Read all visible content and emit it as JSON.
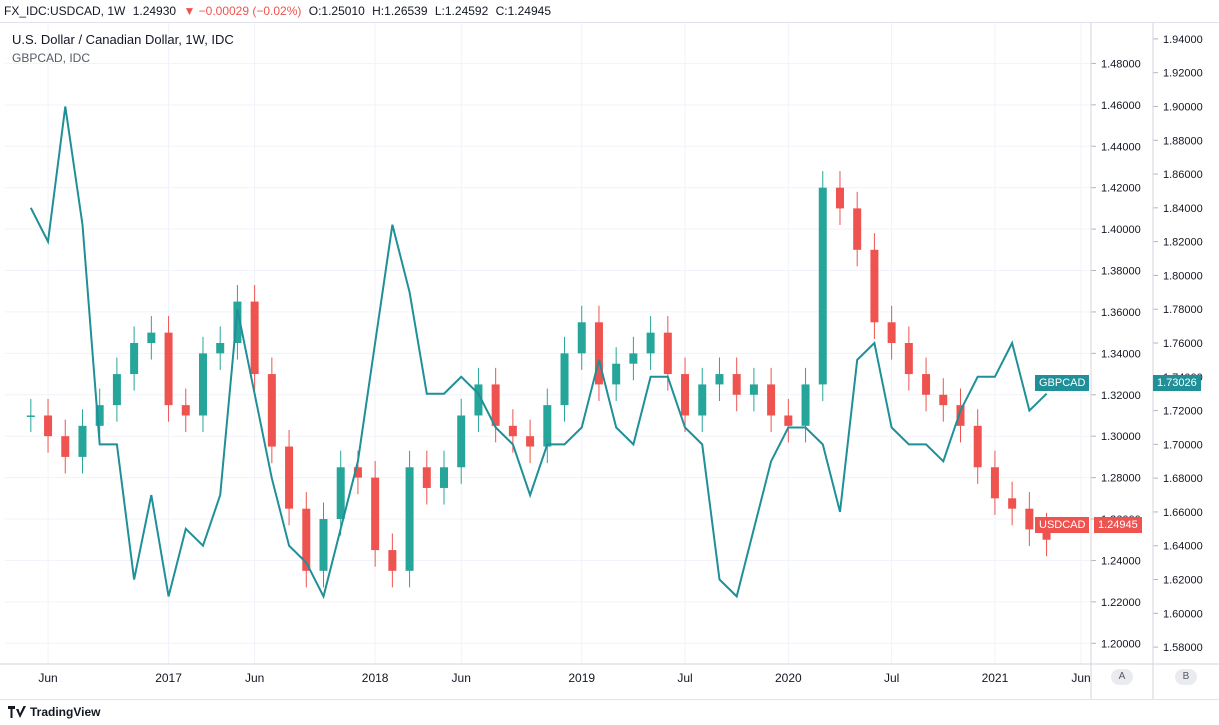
{
  "header": {
    "symbol": "FX_IDC:USDCAD, 1W",
    "last": "1.24930",
    "change": "▼ −0.00029 (−0.02%)",
    "open": "O:1.25010",
    "high": "H:1.26539",
    "low": "L:1.24592",
    "close": "C:1.24945"
  },
  "legend": {
    "main": "U.S. Dollar / Canadian Dollar, 1W, IDC",
    "compare": "GBPCAD, IDC"
  },
  "colors": {
    "up": "#26a69a",
    "down": "#ef5350",
    "gbpcad": "#1f8f98"
  },
  "chart_data": {
    "type": "line",
    "x": [
      "2016-05",
      "2016-06",
      "2016-07",
      "2016-08",
      "2016-09",
      "2016-10",
      "2016-11",
      "2016-12",
      "2017-01",
      "2017-02",
      "2017-03",
      "2017-04",
      "2017-05",
      "2017-06",
      "2017-07",
      "2017-08",
      "2017-09",
      "2017-10",
      "2017-11",
      "2017-12",
      "2018-01",
      "2018-02",
      "2018-03",
      "2018-04",
      "2018-05",
      "2018-06",
      "2018-07",
      "2018-08",
      "2018-09",
      "2018-10",
      "2018-11",
      "2018-12",
      "2019-01",
      "2019-02",
      "2019-03",
      "2019-04",
      "2019-05",
      "2019-06",
      "2019-07",
      "2019-08",
      "2019-09",
      "2019-10",
      "2019-11",
      "2019-12",
      "2020-01",
      "2020-02",
      "2020-03",
      "2020-04",
      "2020-05",
      "2020-06",
      "2020-07",
      "2020-08",
      "2020-09",
      "2020-10",
      "2020-11",
      "2020-12",
      "2021-01",
      "2021-02",
      "2021-03",
      "2021-04"
    ],
    "series": [
      {
        "name": "USDCAD",
        "type": "candlestick",
        "axis": "left",
        "values": [
          1.31,
          1.3,
          1.29,
          1.305,
          1.315,
          1.33,
          1.345,
          1.35,
          1.315,
          1.31,
          1.34,
          1.345,
          1.365,
          1.33,
          1.295,
          1.265,
          1.235,
          1.26,
          1.285,
          1.28,
          1.245,
          1.235,
          1.285,
          1.275,
          1.285,
          1.31,
          1.325,
          1.305,
          1.3,
          1.295,
          1.315,
          1.34,
          1.355,
          1.325,
          1.335,
          1.34,
          1.35,
          1.33,
          1.31,
          1.325,
          1.33,
          1.32,
          1.325,
          1.31,
          1.305,
          1.325,
          1.42,
          1.41,
          1.39,
          1.355,
          1.345,
          1.33,
          1.32,
          1.315,
          1.305,
          1.285,
          1.27,
          1.265,
          1.255,
          1.25
        ]
      },
      {
        "name": "GBPCAD",
        "type": "line",
        "axis": "right",
        "values": [
          1.84,
          1.82,
          1.9,
          1.83,
          1.7,
          1.7,
          1.62,
          1.67,
          1.61,
          1.65,
          1.64,
          1.67,
          1.78,
          1.73,
          1.68,
          1.64,
          1.63,
          1.61,
          1.65,
          1.69,
          1.76,
          1.83,
          1.79,
          1.73,
          1.73,
          1.74,
          1.73,
          1.71,
          1.7,
          1.67,
          1.7,
          1.7,
          1.71,
          1.75,
          1.71,
          1.7,
          1.74,
          1.74,
          1.71,
          1.7,
          1.62,
          1.61,
          1.65,
          1.69,
          1.71,
          1.71,
          1.7,
          1.66,
          1.75,
          1.76,
          1.71,
          1.7,
          1.7,
          1.69,
          1.72,
          1.74,
          1.74,
          1.76,
          1.72,
          1.73
        ]
      }
    ],
    "left_axis": {
      "min": 1.19,
      "max": 1.5,
      "ticks": [
        "1.20000",
        "1.22000",
        "1.24000",
        "1.26000",
        "1.28000",
        "1.30000",
        "1.32000",
        "1.34000",
        "1.36000",
        "1.38000",
        "1.40000",
        "1.42000",
        "1.44000",
        "1.46000",
        "1.48000"
      ]
    },
    "right_axis": {
      "min": 1.57,
      "max": 1.95,
      "ticks": [
        "1.58000",
        "1.60000",
        "1.62000",
        "1.64000",
        "1.66000",
        "1.68000",
        "1.70000",
        "1.72000",
        "1.74000",
        "1.76000",
        "1.78000",
        "1.80000",
        "1.82000",
        "1.84000",
        "1.86000",
        "1.88000",
        "1.90000",
        "1.92000",
        "1.94000"
      ]
    },
    "x_labels": [
      "Jun",
      "2017",
      "Jun",
      "2018",
      "Jun",
      "2019",
      "Jul",
      "2020",
      "Jul",
      "2021",
      "Jun"
    ],
    "x_label_dates": [
      "2016-06",
      "2017-01",
      "2017-06",
      "2018-01",
      "2018-06",
      "2019-01",
      "2019-07",
      "2020-01",
      "2020-07",
      "2021-01",
      "2021-06"
    ],
    "last_values": {
      "gbpcad_label": "GBPCAD",
      "gbpcad": "1.73026",
      "usdcad_label": "USDCAD",
      "usdcad": "1.24945"
    },
    "grid": true,
    "scale_buttons": [
      "A",
      "B"
    ]
  },
  "footer": {
    "brand": "TradingView"
  }
}
